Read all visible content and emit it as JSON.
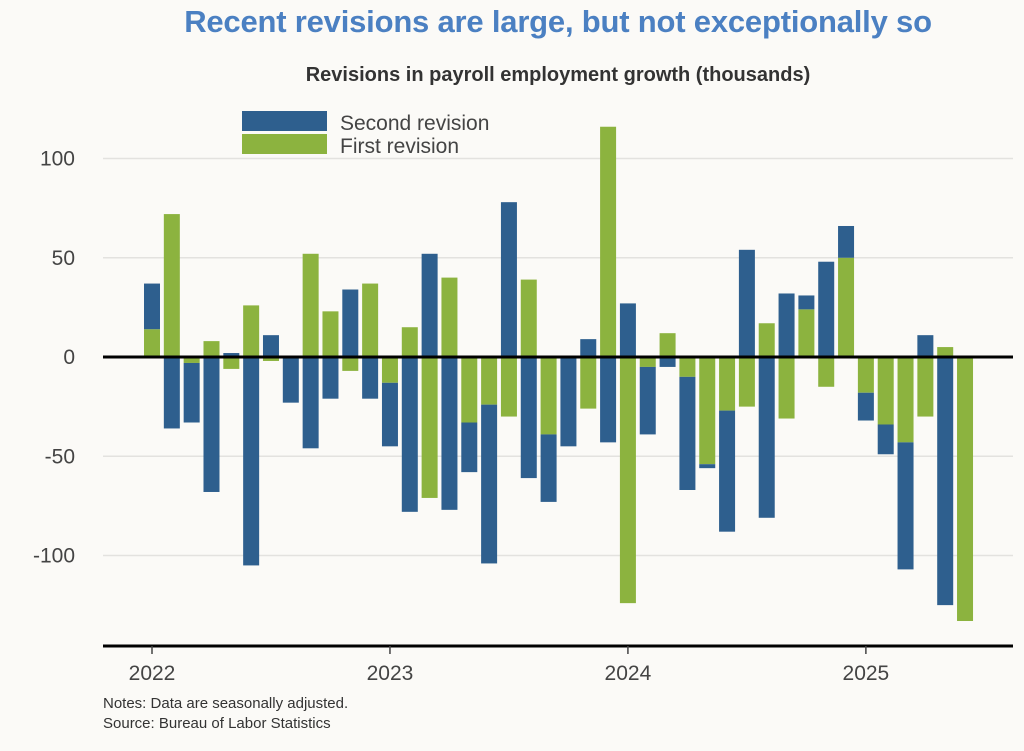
{
  "header": {
    "title": "Recent revisions are large, but not exceptionally so",
    "subtitle": "Revisions in payroll employment growth (thousands)"
  },
  "footer": {
    "notes": "Notes: Data are seasonally adjusted.",
    "source": "Source: Bureau of Labor Statistics"
  },
  "colors": {
    "second_revision": "#2e5f8e",
    "first_revision": "#8cb33f",
    "title": "#4b80c2",
    "background": "#fbfaf7"
  },
  "chart_data": {
    "type": "bar",
    "stacked": true,
    "title": "Recent revisions are large, but not exceptionally so",
    "subtitle": "Revisions in payroll employment growth (thousands)",
    "xlabel": "",
    "ylabel": "",
    "ylim": [
      -135,
      120
    ],
    "yticks": [
      100,
      50,
      0,
      -50,
      -100
    ],
    "xticks": [
      "2022",
      "2023",
      "2024",
      "2025"
    ],
    "grid": true,
    "legend": {
      "placement": "top-left",
      "entries": [
        "Second revision",
        "First revision"
      ]
    },
    "categories": [
      "2022-01",
      "2022-02",
      "2022-03",
      "2022-04",
      "2022-05",
      "2022-06",
      "2022-07",
      "2022-08",
      "2022-09",
      "2022-10",
      "2022-11",
      "2022-12",
      "2023-01",
      "2023-02",
      "2023-03",
      "2023-04",
      "2023-05",
      "2023-06",
      "2023-07",
      "2023-08",
      "2023-09",
      "2023-10",
      "2023-11",
      "2023-12",
      "2024-01",
      "2024-02",
      "2024-03",
      "2024-04",
      "2024-05",
      "2024-06",
      "2024-07",
      "2024-08",
      "2024-09",
      "2024-10",
      "2024-11",
      "2024-12",
      "2025-01",
      "2025-02",
      "2025-03",
      "2025-04",
      "2025-05",
      "2025-06"
    ],
    "series": [
      {
        "name": "First revision",
        "values": [
          14,
          72,
          -3,
          8,
          -6,
          26,
          -2,
          0,
          52,
          23,
          -7,
          37,
          -13,
          15,
          -71,
          40,
          -33,
          -24,
          -30,
          39,
          -39,
          0,
          -26,
          116,
          -124,
          -5,
          12,
          -10,
          -54,
          -27,
          -25,
          17,
          -31,
          24,
          -15,
          50,
          -18,
          -34,
          -43,
          -30,
          5,
          -133
        ]
      },
      {
        "name": "Second revision",
        "values": [
          23,
          -36,
          -30,
          -68,
          2,
          -105,
          11,
          -23,
          -46,
          -21,
          34,
          -21,
          -32,
          -78,
          52,
          -77,
          -25,
          -80,
          78,
          -61,
          -34,
          -45,
          9,
          -43,
          27,
          -34,
          -5,
          -57,
          -2,
          -61,
          54,
          -81,
          32,
          7,
          48,
          16,
          -14,
          -15,
          -64,
          11,
          -125,
          null
        ]
      }
    ]
  }
}
